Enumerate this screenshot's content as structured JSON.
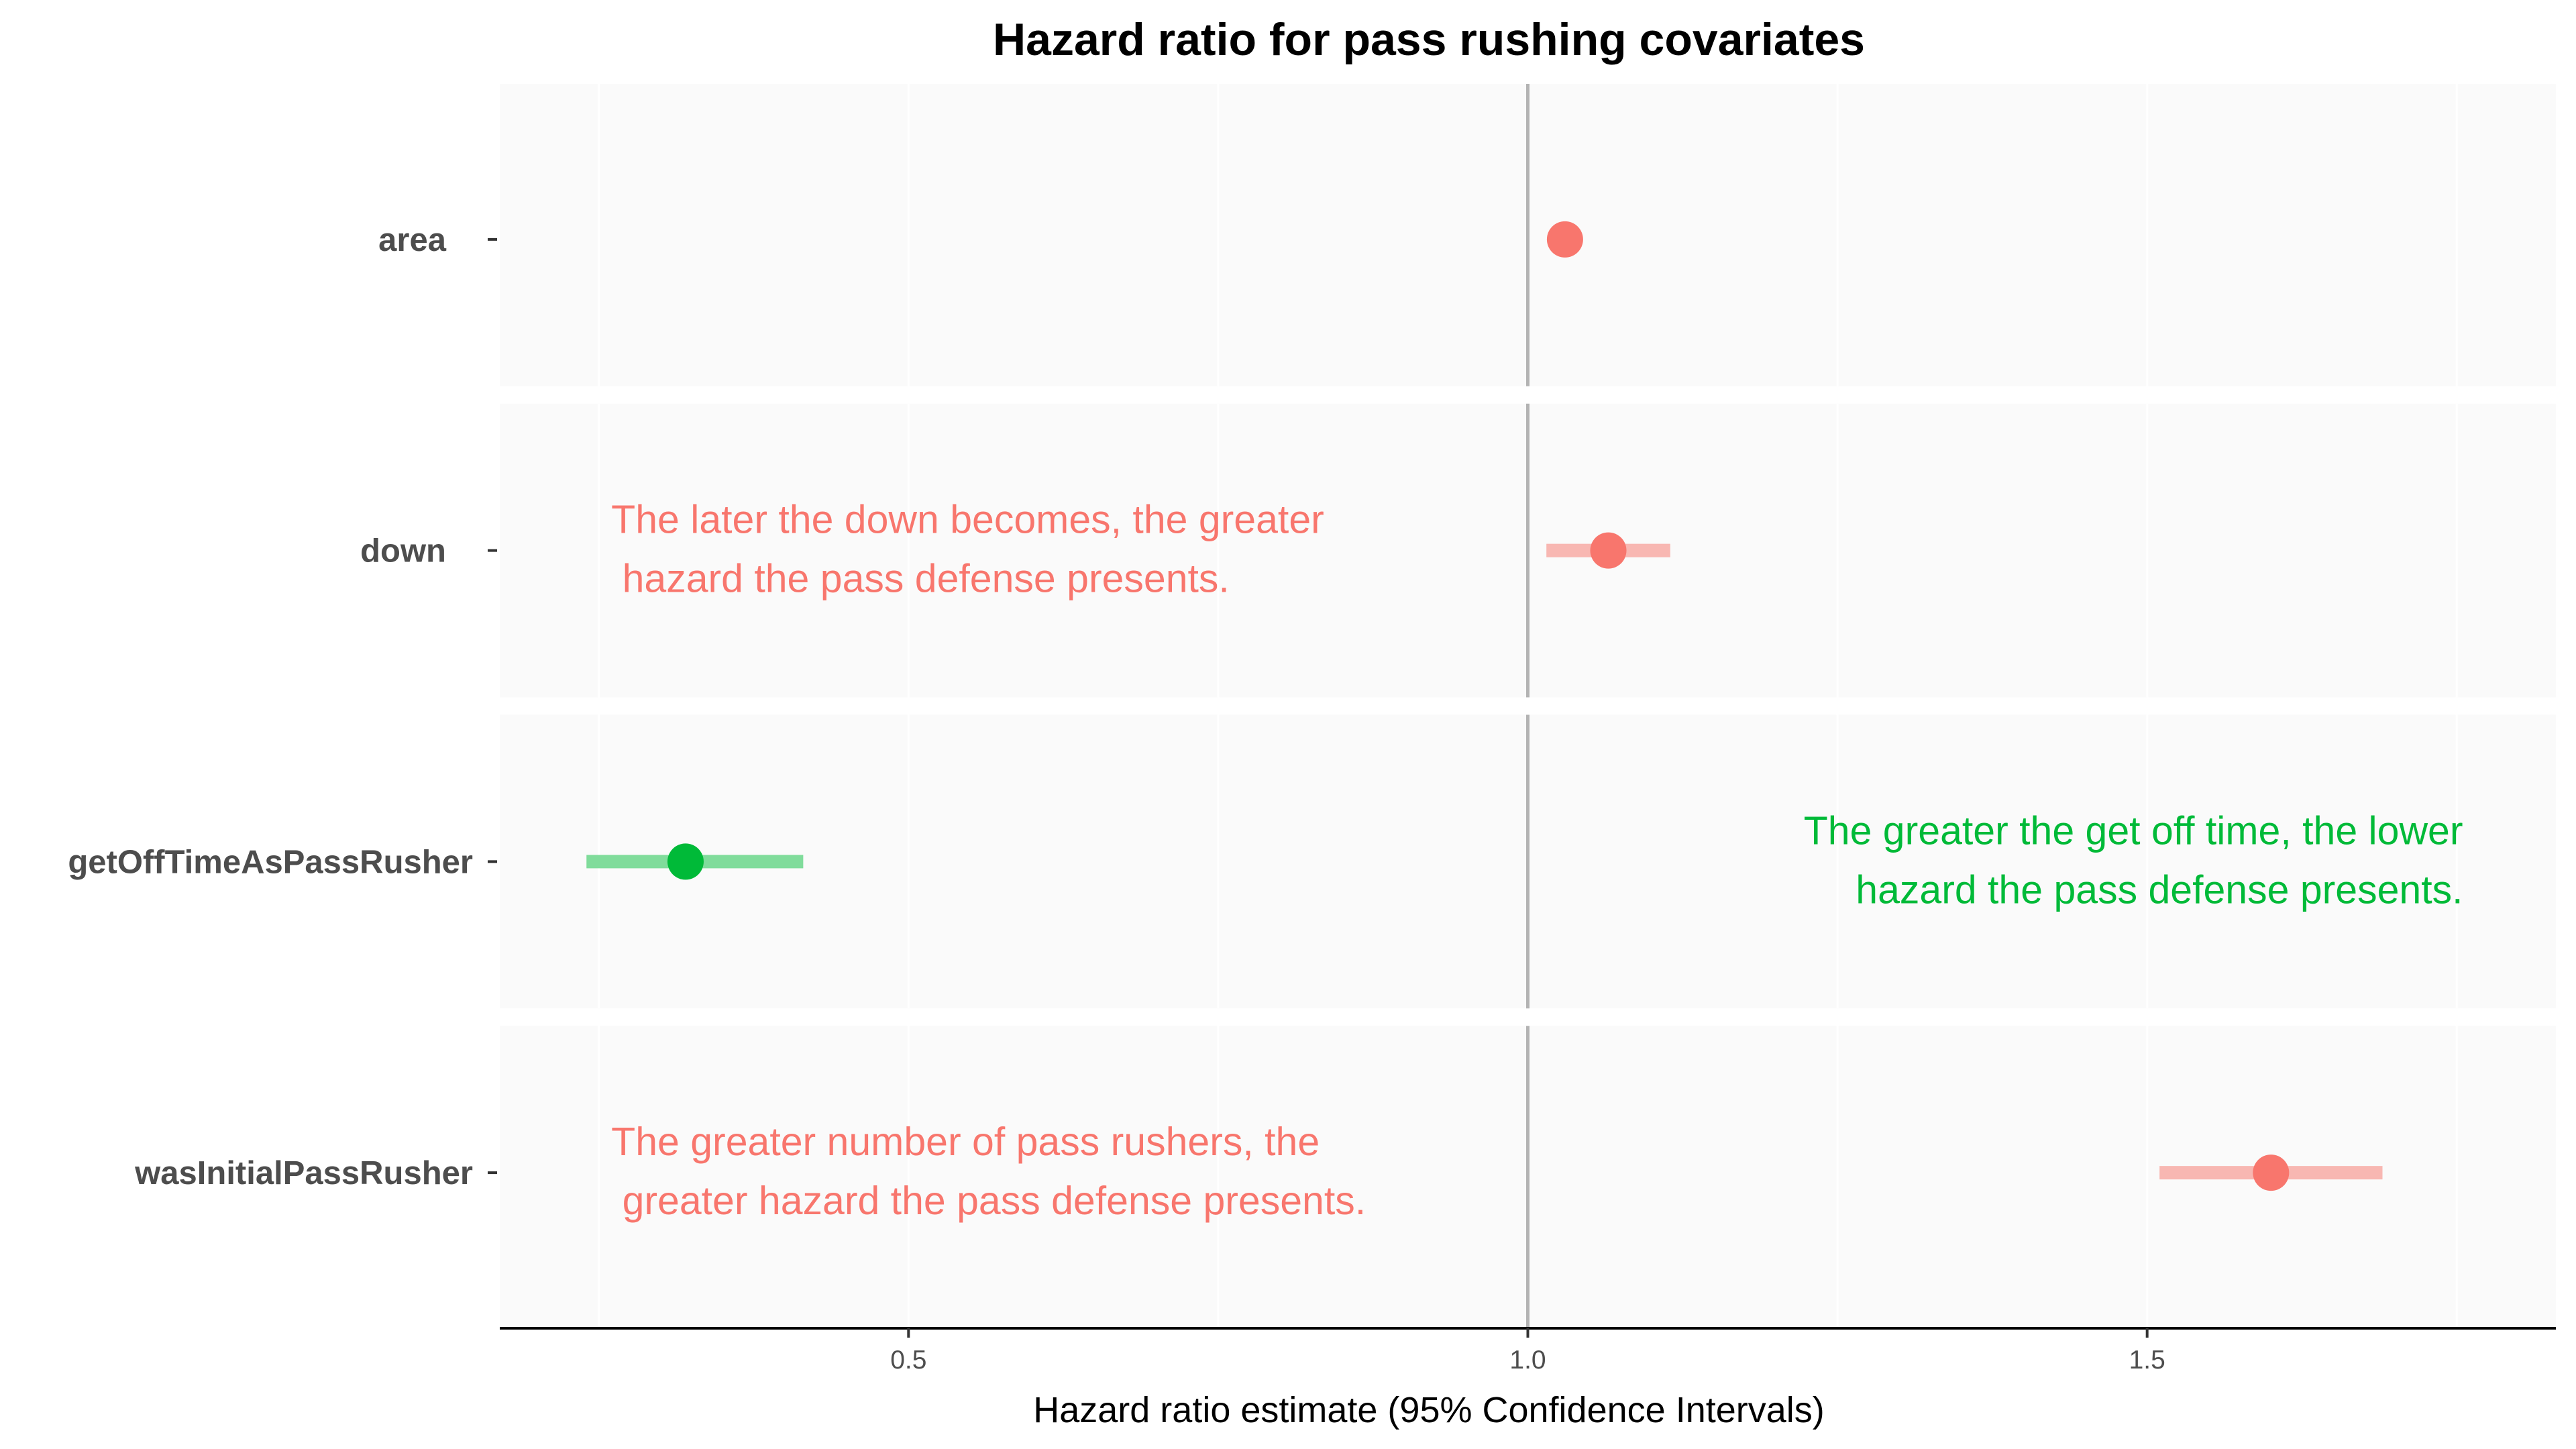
{
  "chart_data": {
    "type": "forest",
    "title": "Hazard ratio for pass rushing covariates",
    "xlabel": "Hazard ratio estimate (95% Confidence Intervals)",
    "ylabel": "",
    "xlim": [
      0.17,
      1.83
    ],
    "xticks": [
      0.5,
      1.0,
      1.5
    ],
    "xtick_labels": [
      "0.5",
      "1.0",
      "1.5"
    ],
    "reference_line": 1.0,
    "grid": true,
    "rows": [
      {
        "label": "area",
        "estimate": 1.03,
        "ci_low": 1.03,
        "ci_high": 1.03,
        "color": "#F8766D",
        "ci_color": "#F8B7B2"
      },
      {
        "label": "down",
        "estimate": 1.065,
        "ci_low": 1.015,
        "ci_high": 1.115,
        "color": "#F8766D",
        "ci_color": "#F8B7B2"
      },
      {
        "label": "getOffTimeAsPassRusher",
        "estimate": 0.32,
        "ci_low": 0.24,
        "ci_high": 0.415,
        "color": "#00BA38",
        "ci_color": "#80DC9B"
      },
      {
        "label": "wasInitialPassRusher",
        "estimate": 1.6,
        "ci_low": 1.51,
        "ci_high": 1.69,
        "color": "#F8766D",
        "ci_color": "#F8B7B2"
      }
    ],
    "annotations": [
      {
        "row": 1,
        "color": "#F8766D",
        "align": "left",
        "lines": [
          "The later the down becomes, the greater",
          " hazard the pass defense presents."
        ]
      },
      {
        "row": 2,
        "color": "#00BA38",
        "align": "right",
        "lines": [
          "The greater the get off time, the lower",
          "hazard the pass defense presents."
        ]
      },
      {
        "row": 3,
        "color": "#F8766D",
        "align": "left",
        "lines": [
          "The greater number of pass rushers, the",
          " greater hazard the pass defense presents."
        ]
      }
    ]
  }
}
